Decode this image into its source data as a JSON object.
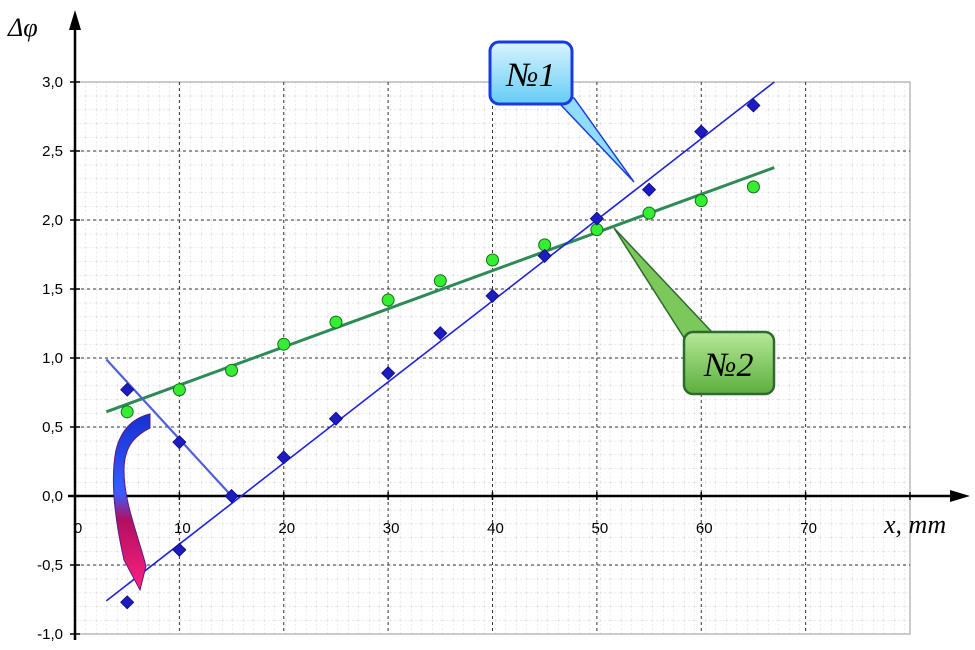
{
  "chart_data": {
    "type": "scatter",
    "title": "",
    "xlabel": "x, mm",
    "ylabel": "Δφ",
    "xlim": [
      0,
      80
    ],
    "ylim": [
      -1.0,
      3.0
    ],
    "x_ticks": [
      "0",
      "10",
      "20",
      "30",
      "40",
      "50",
      "60",
      "70"
    ],
    "y_ticks": [
      "-1,0",
      "-0,5",
      "0,0",
      "0,5",
      "1,0",
      "1,5",
      "2,0",
      "2,5",
      "3,0"
    ],
    "grid": true,
    "series": [
      {
        "name": "№1",
        "marker": "diamond",
        "color": "#1f22c8",
        "points": [
          {
            "x": 5,
            "y": -0.77
          },
          {
            "x": 10,
            "y": -0.39
          },
          {
            "x": 20,
            "y": 0.28
          },
          {
            "x": 25,
            "y": 0.56
          },
          {
            "x": 30,
            "y": 0.89
          },
          {
            "x": 35,
            "y": 1.18
          },
          {
            "x": 40,
            "y": 1.45
          },
          {
            "x": 45,
            "y": 1.74
          },
          {
            "x": 50,
            "y": 2.01
          },
          {
            "x": 55,
            "y": 2.22
          },
          {
            "x": 60,
            "y": 2.64
          },
          {
            "x": 65,
            "y": 2.83
          }
        ],
        "folded_points": [
          {
            "x": 5,
            "y": 0.77
          },
          {
            "x": 10,
            "y": 0.39
          },
          {
            "x": 15,
            "y": 0.0
          }
        ],
        "trend": {
          "x": [
            3,
            67
          ],
          "y": [
            -0.76,
            3.0
          ]
        },
        "fold_line": {
          "x": [
            3,
            15
          ],
          "y": [
            0.99,
            0.0
          ]
        }
      },
      {
        "name": "№2",
        "marker": "circle",
        "color": "#2e8b57",
        "fill": "#33ee33",
        "points": [
          {
            "x": 5,
            "y": 0.61
          },
          {
            "x": 10,
            "y": 0.77
          },
          {
            "x": 15,
            "y": 0.91
          },
          {
            "x": 20,
            "y": 1.1
          },
          {
            "x": 25,
            "y": 1.26
          },
          {
            "x": 30,
            "y": 1.42
          },
          {
            "x": 35,
            "y": 1.56
          },
          {
            "x": 40,
            "y": 1.71
          },
          {
            "x": 45,
            "y": 1.82
          },
          {
            "x": 50,
            "y": 1.93
          },
          {
            "x": 55,
            "y": 2.05
          },
          {
            "x": 60,
            "y": 2.14
          },
          {
            "x": 65,
            "y": 2.24
          }
        ],
        "trend": {
          "x": [
            3,
            67
          ],
          "y": [
            0.61,
            2.38
          ]
        }
      }
    ],
    "annotations": {
      "callout1": "№1",
      "callout2": "№2"
    }
  }
}
